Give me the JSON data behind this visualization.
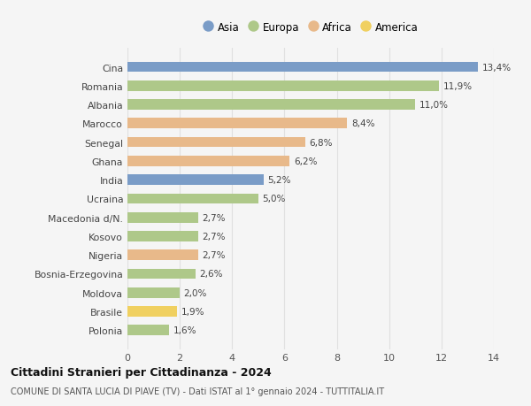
{
  "countries": [
    "Cina",
    "Romania",
    "Albania",
    "Marocco",
    "Senegal",
    "Ghana",
    "India",
    "Ucraina",
    "Macedonia d/N.",
    "Kosovo",
    "Nigeria",
    "Bosnia-Erzegovina",
    "Moldova",
    "Brasile",
    "Polonia"
  ],
  "values": [
    13.4,
    11.9,
    11.0,
    8.4,
    6.8,
    6.2,
    5.2,
    5.0,
    2.7,
    2.7,
    2.7,
    2.6,
    2.0,
    1.9,
    1.6
  ],
  "labels": [
    "13,4%",
    "11,9%",
    "11,0%",
    "8,4%",
    "6,8%",
    "6,2%",
    "5,2%",
    "5,0%",
    "2,7%",
    "2,7%",
    "2,7%",
    "2,6%",
    "2,0%",
    "1,9%",
    "1,6%"
  ],
  "continents": [
    "Asia",
    "Europa",
    "Europa",
    "Africa",
    "Africa",
    "Africa",
    "Asia",
    "Europa",
    "Europa",
    "Europa",
    "Africa",
    "Europa",
    "Europa",
    "America",
    "Europa"
  ],
  "colors": {
    "Asia": "#7a9cc7",
    "Africa": "#e8b98a",
    "America": "#f0d060"
  },
  "colors2": {
    "Asia": "#7a9cc7",
    "Europa": "#aec889",
    "Africa": "#e8b98a",
    "America": "#f0d060"
  },
  "legend_order": [
    "Asia",
    "Europa",
    "Africa",
    "America"
  ],
  "title": "Cittadini Stranieri per Cittadinanza - 2024",
  "subtitle": "COMUNE DI SANTA LUCIA DI PIAVE (TV) - Dati ISTAT al 1° gennaio 2024 - TUTTITALIA.IT",
  "xlim": [
    0,
    14
  ],
  "xticks": [
    0,
    2,
    4,
    6,
    8,
    10,
    12,
    14
  ],
  "background_color": "#f5f5f5",
  "grid_color": "#e0e0e0",
  "bar_height": 0.55
}
